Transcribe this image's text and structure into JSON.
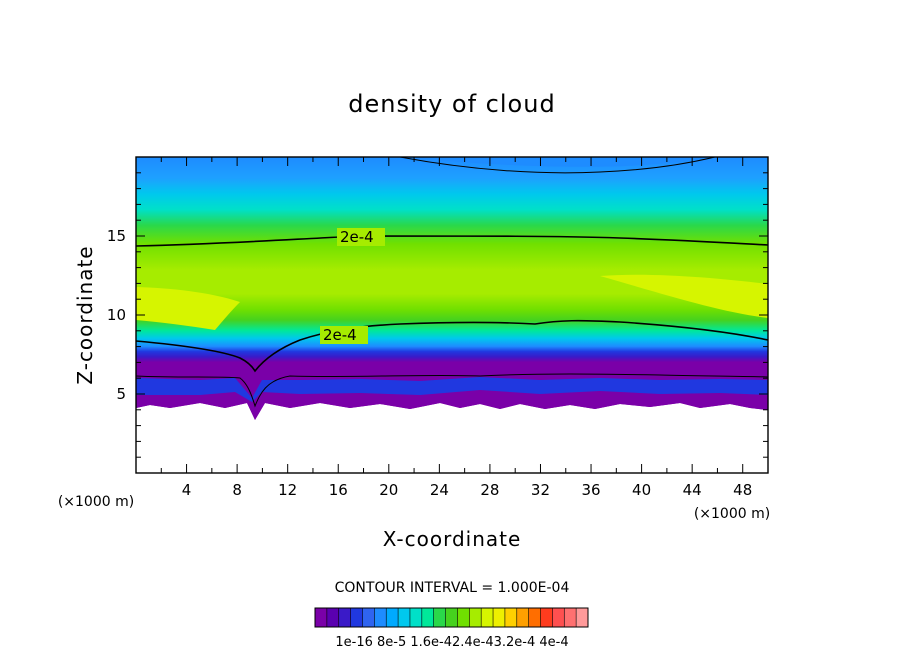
{
  "chart_data": {
    "type": "heatmap",
    "title": "density of cloud",
    "xlabel": "X-coordinate",
    "ylabel": "Z-coordinate",
    "x_unit": "(×1000 m)",
    "z_unit": "(×1000 m)",
    "xlim": [
      0,
      50
    ],
    "ylim": [
      0,
      20
    ],
    "x_ticks": [
      "4",
      "8",
      "12",
      "16",
      "20",
      "24",
      "28",
      "32",
      "36",
      "40",
      "44",
      "48"
    ],
    "z_ticks": [
      "5",
      "10",
      "15"
    ],
    "contour_interval_text": "CONTOUR INTERVAL = 1.000E-04",
    "contour_labels": [
      "2e-4",
      "2e-4"
    ],
    "colorbar_labels": [
      "1e-16",
      "8e-5",
      "1.6e-4",
      "2.4e-4",
      "3.2e-4",
      "4e-4"
    ],
    "colorbar_label_text": "1e-16 8e-5 1.6e-42.4e-43.2e-4 4e-4",
    "colors": [
      "#7a00a8",
      "#5a00b0",
      "#3a1ac8",
      "#2038e0",
      "#2f64f0",
      "#1e8cff",
      "#00aaff",
      "#00c8ee",
      "#00e0c8",
      "#00e89a",
      "#2ad84a",
      "#46d21e",
      "#70e000",
      "#a6ec00",
      "#d6f500",
      "#eef000",
      "#ffd000",
      "#ffa000",
      "#ff6e00",
      "#ff3c1e",
      "#ff5050",
      "#ff7070",
      "#ff9a9a"
    ],
    "cloud_base_km": 4.5,
    "upper_2e4_contour_km": 14.5,
    "lower_2e4_contour_km": 9.5,
    "core_max_km": 10.5
  }
}
